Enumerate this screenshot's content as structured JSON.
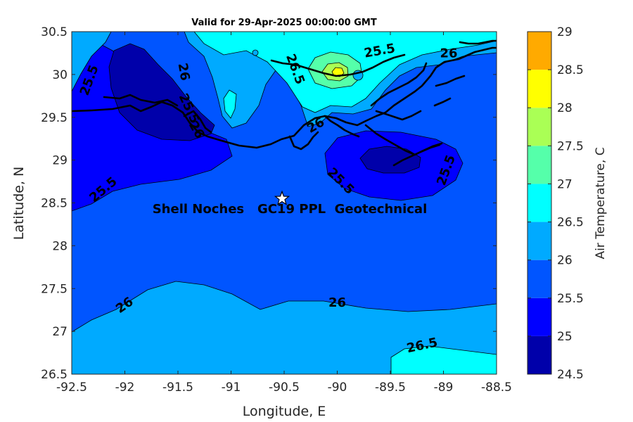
{
  "chart_data": {
    "type": "contour",
    "title": "Valid for 29-Apr-2025 00:00:00 GMT",
    "xlabel": "Longitude, E",
    "ylabel": "Latitude, N",
    "xlim": [
      -92.5,
      -88.5
    ],
    "ylim": [
      26.5,
      30.5
    ],
    "xticks": [
      "-92.5",
      "-92",
      "-91.5",
      "-91",
      "-90.5",
      "-90",
      "-89.5",
      "-89",
      "-88.5"
    ],
    "yticks": [
      "26.5",
      "27",
      "27.5",
      "28",
      "28.5",
      "29",
      "29.5",
      "30",
      "30.5"
    ],
    "colorbar": {
      "label": "Air Temperature, C",
      "levels": [
        24.5,
        25,
        25.5,
        26,
        26.5,
        27,
        27.5,
        28,
        28.5,
        29
      ],
      "ticks": [
        "24.5",
        "25",
        "25.5",
        "26",
        "26.5",
        "27",
        "27.5",
        "28",
        "28.5",
        "29"
      ],
      "colors": [
        "#0000aa",
        "#0000ff",
        "#0055ff",
        "#00aaff",
        "#00ffff",
        "#55ffaa",
        "#aaff55",
        "#ffff00",
        "#ffaa00",
        "#ff5500"
      ]
    },
    "contour_labels": [
      {
        "text": "25.5",
        "lon": -92.33,
        "lat": 29.93,
        "angle": -70
      },
      {
        "text": "26",
        "lon": -91.45,
        "lat": 30.03,
        "angle": 80
      },
      {
        "text": "25.5",
        "lon": -91.4,
        "lat": 29.6,
        "angle": 65
      },
      {
        "text": "26",
        "lon": -91.33,
        "lat": 29.35,
        "angle": 60
      },
      {
        "text": "26.5",
        "lon": -90.4,
        "lat": 30.06,
        "angle": 70
      },
      {
        "text": "25.5",
        "lon": -89.6,
        "lat": 30.27,
        "angle": -10
      },
      {
        "text": "26",
        "lon": -88.95,
        "lat": 30.24,
        "angle": 0
      },
      {
        "text": "26",
        "lon": -90.2,
        "lat": 29.4,
        "angle": -30
      },
      {
        "text": "25.5",
        "lon": -89.97,
        "lat": 28.75,
        "angle": 45
      },
      {
        "text": "25.5",
        "lon": -88.97,
        "lat": 28.88,
        "angle": -70
      },
      {
        "text": "25.5",
        "lon": -92.2,
        "lat": 28.65,
        "angle": -40
      },
      {
        "text": "26",
        "lon": -92.0,
        "lat": 27.3,
        "angle": -35
      },
      {
        "text": "26",
        "lon": -90.0,
        "lat": 27.33,
        "angle": 0
      },
      {
        "text": "26.5",
        "lon": -89.2,
        "lat": 26.83,
        "angle": -12
      }
    ],
    "marker": {
      "symbol": "star",
      "lon": -90.52,
      "lat": 28.55
    },
    "annotation": "Shell Noches   GC19 PPL  Geotechnical"
  }
}
